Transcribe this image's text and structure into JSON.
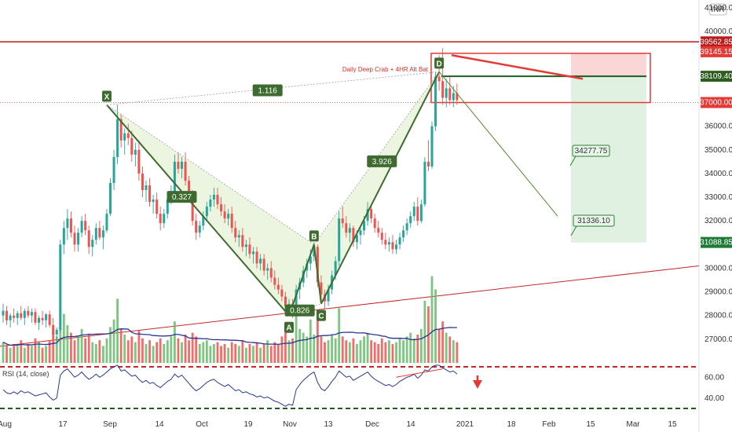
{
  "chart_data": {
    "type": "candlestick",
    "currency_badge": "INR",
    "price_axis": {
      "min": 26000,
      "max": 41000,
      "ticks": [
        {
          "label": "27000.00",
          "value": 27000
        },
        {
          "label": "28000.00",
          "value": 28000
        },
        {
          "label": "29000.00",
          "value": 29000
        },
        {
          "label": "30000.00",
          "value": 30000
        },
        {
          "label": "32000.00",
          "value": 32000
        },
        {
          "label": "33000.00",
          "value": 33000
        },
        {
          "label": "34000.00",
          "value": 34000
        },
        {
          "label": "35000.00",
          "value": 35000
        },
        {
          "label": "36000.00",
          "value": 36000
        },
        {
          "label": "40000.00",
          "value": 40000
        },
        {
          "label": "41000.00",
          "value": 41000
        }
      ]
    },
    "price_tags": [
      {
        "label": "39562.85",
        "value": 39562.85,
        "color": "#b71c1c"
      },
      {
        "label": "39145.15",
        "value": 39145.15,
        "color": "#e53935"
      },
      {
        "label": "38109.40",
        "value": 38109.4,
        "color": "#2e5e1f"
      },
      {
        "label": "37000.00",
        "value": 37000,
        "color": "#e53935"
      },
      {
        "label": "31088.85",
        "value": 31088.85,
        "color": "#1e7a34"
      }
    ],
    "time_axis": [
      "Aug",
      "17",
      "Sep",
      "14",
      "Oct",
      "19",
      "Nov",
      "13",
      "Dec",
      "14",
      "2021",
      "18",
      "Feb",
      "15",
      "Mar",
      "15"
    ],
    "candles": [
      [
        0,
        28000,
        28500,
        27700,
        28200
      ],
      [
        1,
        28200,
        28400,
        27600,
        27800
      ],
      [
        2,
        27800,
        28100,
        27500,
        28000
      ],
      [
        3,
        28000,
        28300,
        27700,
        27900
      ],
      [
        4,
        27900,
        28200,
        27600,
        28100
      ],
      [
        5,
        28100,
        28400,
        27800,
        27900
      ],
      [
        6,
        27900,
        28300,
        27600,
        28200
      ],
      [
        7,
        28200,
        28400,
        27900,
        28000
      ],
      [
        8,
        28000,
        28300,
        27700,
        28150
      ],
      [
        9,
        28150,
        28300,
        27600,
        27700
      ],
      [
        10,
        27700,
        28000,
        27400,
        27900
      ],
      [
        11,
        27900,
        28200,
        27600,
        27800
      ],
      [
        12,
        27800,
        28100,
        27500,
        28050
      ],
      [
        13,
        28050,
        28200,
        27500,
        27600
      ],
      [
        14,
        27600,
        27900,
        27000,
        27200
      ],
      [
        15,
        27200,
        27500,
        26800,
        27400
      ],
      [
        16,
        27400,
        31200,
        27300,
        31000
      ],
      [
        17,
        31000,
        32000,
        30600,
        31700
      ],
      [
        18,
        31700,
        32500,
        31200,
        32100
      ],
      [
        19,
        32100,
        32400,
        31300,
        31500
      ],
      [
        20,
        31500,
        31800,
        30700,
        31000
      ],
      [
        21,
        31000,
        31700,
        30700,
        31500
      ],
      [
        22,
        31500,
        32200,
        31300,
        32000
      ],
      [
        23,
        32000,
        32300,
        31400,
        31600
      ],
      [
        24,
        31600,
        31800,
        30600,
        30900
      ],
      [
        25,
        30900,
        31400,
        30500,
        31200
      ],
      [
        26,
        31200,
        31900,
        31000,
        31700
      ],
      [
        27,
        31700,
        32000,
        31200,
        31300
      ],
      [
        28,
        31300,
        31800,
        30800,
        31600
      ],
      [
        29,
        31600,
        32500,
        31500,
        32300
      ],
      [
        30,
        32300,
        33800,
        32200,
        33600
      ],
      [
        31,
        33600,
        35000,
        33300,
        34700
      ],
      [
        32,
        34700,
        36900,
        34400,
        36300
      ],
      [
        33,
        36300,
        36500,
        35100,
        35400
      ],
      [
        34,
        35400,
        35900,
        34800,
        35700
      ],
      [
        35,
        35700,
        36100,
        35200,
        35500
      ],
      [
        36,
        35500,
        35800,
        34500,
        34800
      ],
      [
        37,
        34800,
        35300,
        34300,
        35000
      ],
      [
        38,
        35000,
        35400,
        33700,
        34000
      ],
      [
        39,
        34000,
        34300,
        33000,
        33300
      ],
      [
        40,
        33300,
        33700,
        32800,
        33500
      ],
      [
        41,
        33500,
        33800,
        32600,
        32800
      ],
      [
        42,
        32800,
        33100,
        32300,
        32900
      ],
      [
        43,
        32900,
        33200,
        32100,
        32300
      ],
      [
        44,
        32300,
        32600,
        31600,
        31900
      ],
      [
        45,
        31900,
        32500,
        31700,
        32300
      ],
      [
        46,
        32300,
        33100,
        32100,
        32900
      ],
      [
        47,
        32900,
        33500,
        32700,
        33200
      ],
      [
        48,
        33200,
        34800,
        33100,
        34500
      ],
      [
        49,
        34500,
        34900,
        34000,
        34200
      ],
      [
        50,
        34200,
        34700,
        33800,
        34500
      ],
      [
        51,
        34500,
        34900,
        33500,
        33700
      ],
      [
        52,
        33700,
        33900,
        32800,
        33000
      ],
      [
        53,
        33000,
        33300,
        31800,
        32000
      ],
      [
        54,
        32000,
        32300,
        31200,
        31500
      ],
      [
        55,
        31500,
        32000,
        31300,
        31800
      ],
      [
        56,
        31800,
        32400,
        31600,
        32200
      ],
      [
        57,
        32200,
        32800,
        32000,
        32600
      ],
      [
        58,
        32600,
        33100,
        32400,
        32900
      ],
      [
        59,
        32900,
        33400,
        32600,
        33100
      ],
      [
        60,
        33100,
        33400,
        32500,
        32700
      ],
      [
        61,
        32700,
        33000,
        32200,
        32400
      ],
      [
        62,
        32400,
        32700,
        31900,
        32100
      ],
      [
        63,
        32100,
        32500,
        31800,
        32300
      ],
      [
        64,
        32300,
        32600,
        31500,
        31700
      ],
      [
        65,
        31700,
        32000,
        31100,
        31300
      ],
      [
        66,
        31300,
        31600,
        30900,
        31400
      ],
      [
        67,
        31400,
        31700,
        30700,
        30900
      ],
      [
        68,
        30900,
        31200,
        30500,
        31000
      ],
      [
        69,
        31000,
        31300,
        30400,
        30600
      ],
      [
        70,
        30600,
        30900,
        30200,
        30700
      ],
      [
        71,
        30700,
        30900,
        30000,
        30200
      ],
      [
        72,
        30200,
        30600,
        29900,
        30400
      ],
      [
        73,
        30400,
        30600,
        29700,
        29900
      ],
      [
        74,
        29900,
        30200,
        29500,
        30000
      ],
      [
        75,
        30000,
        30300,
        29400,
        29600
      ],
      [
        76,
        29600,
        29900,
        29100,
        29300
      ],
      [
        77,
        29300,
        29600,
        28900,
        29100
      ],
      [
        78,
        29100,
        29300,
        28600,
        28800
      ],
      [
        79,
        28800,
        29000,
        28300,
        28400
      ],
      [
        80,
        28400,
        28700,
        28000,
        28500
      ],
      [
        81,
        28500,
        28700,
        27900,
        28100
      ],
      [
        82,
        28100,
        29300,
        28000,
        29100
      ],
      [
        83,
        29100,
        29600,
        28700,
        29400
      ],
      [
        84,
        29400,
        30100,
        29200,
        29900
      ],
      [
        85,
        29900,
        30400,
        29600,
        30200
      ],
      [
        86,
        30200,
        30800,
        29900,
        30500
      ],
      [
        87,
        30500,
        31100,
        30300,
        30900
      ],
      [
        88,
        30900,
        31000,
        29200,
        29400
      ],
      [
        89,
        29400,
        29700,
        28600,
        28900
      ],
      [
        90,
        28900,
        29100,
        28300,
        28600
      ],
      [
        91,
        28600,
        29300,
        28400,
        29100
      ],
      [
        92,
        29100,
        29900,
        28900,
        29700
      ],
      [
        93,
        29700,
        30500,
        29500,
        30300
      ],
      [
        94,
        30300,
        32400,
        30100,
        32100
      ],
      [
        95,
        32100,
        32600,
        31700,
        31900
      ],
      [
        96,
        31900,
        32200,
        31300,
        31500
      ],
      [
        97,
        31500,
        31900,
        31100,
        31700
      ],
      [
        98,
        31700,
        31800,
        30900,
        31100
      ],
      [
        99,
        31100,
        31600,
        30800,
        31400
      ],
      [
        100,
        31400,
        31800,
        31000,
        31600
      ],
      [
        101,
        31600,
        32200,
        31400,
        32000
      ],
      [
        102,
        32000,
        32800,
        31800,
        32500
      ],
      [
        103,
        32500,
        32700,
        31900,
        32100
      ],
      [
        104,
        32100,
        32300,
        31500,
        31700
      ],
      [
        105,
        31700,
        32000,
        31300,
        31500
      ],
      [
        106,
        31500,
        31700,
        31000,
        31200
      ],
      [
        107,
        31200,
        31500,
        30800,
        31000
      ],
      [
        108,
        31000,
        31300,
        30700,
        31100
      ],
      [
        109,
        31100,
        31400,
        30600,
        30800
      ],
      [
        110,
        30800,
        31200,
        30600,
        31000
      ],
      [
        111,
        31000,
        31500,
        30800,
        31300
      ],
      [
        112,
        31300,
        31800,
        31100,
        31600
      ],
      [
        113,
        31600,
        32100,
        31400,
        31900
      ],
      [
        114,
        31900,
        32400,
        31700,
        32200
      ],
      [
        115,
        32200,
        32800,
        32000,
        32600
      ],
      [
        116,
        32600,
        33000,
        31800,
        32000
      ],
      [
        117,
        32000,
        32900,
        31900,
        32700
      ],
      [
        118,
        32700,
        34700,
        32600,
        34500
      ],
      [
        119,
        34500,
        35400,
        34100,
        34300
      ],
      [
        120,
        34300,
        36200,
        34200,
        36000
      ],
      [
        121,
        36000,
        38300,
        35800,
        38100
      ],
      [
        122,
        38100,
        39000,
        37500,
        37900
      ],
      [
        123,
        37900,
        39300,
        36900,
        37200
      ],
      [
        124,
        37200,
        38000,
        36800,
        37600
      ],
      [
        125,
        37600,
        38100,
        36900,
        37100
      ],
      [
        126,
        37100,
        37700,
        36800,
        37400
      ],
      [
        127,
        37400,
        37800,
        36900,
        37100
      ]
    ],
    "volume": [
      1.1,
      0.9,
      0.8,
      1.0,
      0.9,
      1.2,
      0.8,
      1.0,
      0.9,
      1.3,
      1.1,
      0.8,
      0.9,
      1.2,
      1.6,
      1.4,
      4.8,
      2.6,
      2.0,
      1.6,
      1.2,
      1.4,
      1.8,
      1.3,
      1.5,
      1.1,
      1.0,
      1.2,
      0.9,
      1.3,
      1.9,
      2.3,
      3.4,
      1.8,
      1.5,
      1.2,
      1.4,
      1.1,
      1.7,
      1.3,
      1.0,
      1.2,
      0.9,
      1.1,
      1.3,
      1.0,
      1.2,
      1.4,
      2.2,
      1.3,
      1.1,
      1.5,
      1.2,
      1.6,
      1.4,
      1.0,
      1.1,
      1.2,
      0.9,
      1.0,
      1.1,
      0.9,
      1.0,
      0.8,
      1.1,
      1.0,
      0.9,
      1.2,
      0.8,
      1.0,
      0.9,
      1.1,
      0.8,
      1.0,
      1.2,
      0.9,
      1.1,
      1.0,
      1.4,
      1.6,
      1.2,
      1.3,
      2.5,
      1.8,
      1.6,
      1.4,
      2.3,
      1.5,
      2.8,
      1.4,
      1.1,
      1.2,
      1.5,
      1.3,
      2.9,
      1.4,
      1.2,
      1.1,
      1.3,
      1.0,
      1.2,
      1.4,
      1.6,
      1.2,
      1.1,
      1.0,
      1.3,
      1.1,
      1.2,
      1.0,
      1.1,
      1.3,
      1.2,
      1.4,
      1.6,
      1.3,
      1.5,
      1.8,
      3.3,
      3.0,
      4.6,
      3.9,
      1.8,
      2.2,
      1.6,
      1.4,
      1.2,
      1.1
    ],
    "rsi": {
      "label": "RSI (14, close)",
      "ticks": [
        {
          "label": "60.00",
          "value": 60
        },
        {
          "label": "40.00",
          "value": 40
        }
      ],
      "overbought": 70,
      "oversold": 30,
      "values": [
        48,
        45,
        44,
        46,
        44,
        47,
        45,
        46,
        44,
        42,
        43,
        44,
        45,
        41,
        38,
        40,
        62,
        66,
        68,
        64,
        60,
        62,
        65,
        61,
        58,
        60,
        63,
        60,
        62,
        65,
        68,
        70,
        73,
        66,
        67,
        64,
        61,
        62,
        58,
        55,
        57,
        54,
        55,
        52,
        50,
        53,
        56,
        58,
        63,
        60,
        62,
        58,
        54,
        50,
        47,
        49,
        52,
        55,
        57,
        58,
        55,
        53,
        51,
        53,
        50,
        47,
        48,
        45,
        46,
        44,
        43,
        41,
        42,
        40,
        41,
        39,
        37,
        36,
        34,
        32,
        34,
        33,
        48,
        53,
        57,
        60,
        63,
        65,
        55,
        49,
        47,
        51,
        56,
        60,
        66,
        63,
        60,
        61,
        57,
        59,
        61,
        63,
        65,
        61,
        58,
        56,
        54,
        52,
        53,
        51,
        53,
        56,
        58,
        60,
        61,
        63,
        59,
        62,
        67,
        66,
        70,
        74,
        72,
        69,
        67,
        65,
        66,
        63
      ]
    },
    "patterns": {
      "points": [
        {
          "label": "X",
          "bar": 29,
          "price": 36900
        },
        {
          "label": "A",
          "bar": 80,
          "price": 28000
        },
        {
          "label": "B",
          "bar": 87,
          "price": 31000
        },
        {
          "label": "C",
          "bar": 89,
          "price": 28500
        },
        {
          "label": "D",
          "bar": 122,
          "price": 38300
        }
      ],
      "ratios": [
        {
          "label": "1.116",
          "bar": 74,
          "price": 37500
        },
        {
          "label": "0.327",
          "bar": 50,
          "price": 33000
        },
        {
          "label": "0.826",
          "bar": 83,
          "price": 28200
        },
        {
          "label": "3.926",
          "bar": 106,
          "price": 34500
        }
      ],
      "annotation": "Daily Deep Crab + 4HR Alt Bat"
    },
    "targets": [
      {
        "label": "34277.75",
        "value": 34277.75
      },
      {
        "label": "31336.10",
        "value": 31336.1
      }
    ]
  }
}
